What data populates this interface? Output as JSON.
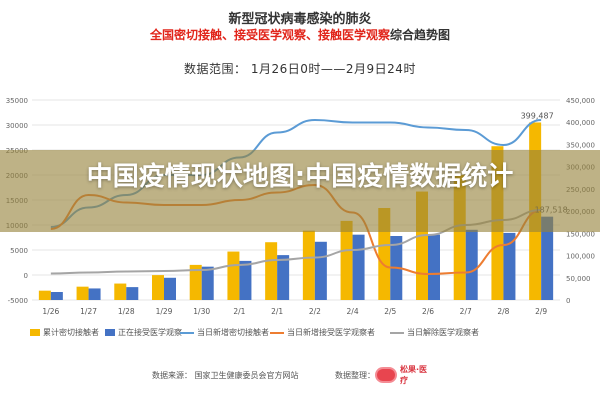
{
  "header": {
    "title": "新型冠状病毒感染的肺炎",
    "subtitle_red": "全国密切接触、接受医学观察、接触医学观察",
    "subtitle_dark": "综合趋势图",
    "range": "数据范围： 1月26日0时——2月9日24时"
  },
  "overlay": {
    "text": "中国疫情现状地图:中国疫情数据统计"
  },
  "footer": {
    "source": "数据来源： 国家卫生健康委员会官方网站",
    "organizer": "数据整理：",
    "logo_text": "松果·医疗"
  },
  "colors": {
    "gold": "#f5b800",
    "blue": "#4472c4",
    "line_blue": "#5b9bd5",
    "line_orange": "#ed7d31",
    "line_gray": "#a5a5a5",
    "title_red": "#e1251b"
  },
  "chart_data": {
    "type": "bar",
    "categories": [
      "1/26",
      "1/27",
      "1/28",
      "1/29",
      "1/30",
      "2/1",
      "2/1",
      "2/2",
      "2/4",
      "2/5",
      "2/6",
      "2/7",
      "2/8",
      "2/9"
    ],
    "left_axis": {
      "min": -5000,
      "max": 35000,
      "ticks": [
        "35000",
        "30000",
        "25000",
        "20000",
        "15000",
        "10000",
        "5000",
        "0",
        "-5000"
      ]
    },
    "right_axis": {
      "min": 0,
      "max": 450000,
      "ticks": [
        "450,000",
        "400,000",
        "350,000",
        "300,000",
        "250,000",
        "200,000",
        "150,000",
        "100,000",
        "50,000",
        "0"
      ]
    },
    "series": [
      {
        "name": "累计密切接触者",
        "kind": "bar",
        "axis": "right",
        "color": "#f5b800",
        "values": [
          21000,
          30000,
          37000,
          56000,
          79000,
          109000,
          130000,
          156000,
          178000,
          207000,
          244000,
          281000,
          346000,
          399487
        ]
      },
      {
        "name": "正在接受医学观察",
        "kind": "bar",
        "axis": "right",
        "color": "#4472c4",
        "values": [
          18000,
          26000,
          29000,
          50000,
          75000,
          88000,
          101000,
          131000,
          147000,
          144000,
          147000,
          158000,
          151000,
          187518
        ]
      },
      {
        "name": "当日新增密切接触者",
        "kind": "line",
        "axis": "left",
        "color": "#5b9bd5",
        "values": [
          9600,
          13500,
          16000,
          20000,
          20000,
          23500,
          28500,
          31000,
          30500,
          30500,
          29500,
          29000,
          26000,
          31000
        ]
      },
      {
        "name": "当日新增接受医学观察者",
        "kind": "line",
        "axis": "left",
        "color": "#ed7d31",
        "values": [
          9200,
          16000,
          14500,
          14000,
          14000,
          15000,
          16500,
          18000,
          12500,
          1500,
          200,
          500,
          6000,
          13000
        ]
      },
      {
        "name": "当日解除医学观察者",
        "kind": "line",
        "axis": "left",
        "color": "#a5a5a5",
        "values": [
          300,
          500,
          700,
          800,
          1000,
          2000,
          3000,
          3500,
          5000,
          6000,
          8000,
          10000,
          11000,
          13000
        ]
      }
    ],
    "data_labels": [
      {
        "text": "399,487",
        "series": "累计密切接触者",
        "index": 13
      },
      {
        "text": "187,518",
        "series": "正在接受医学观察",
        "index": 13
      }
    ],
    "grid": true,
    "legend_position": "bottom"
  }
}
